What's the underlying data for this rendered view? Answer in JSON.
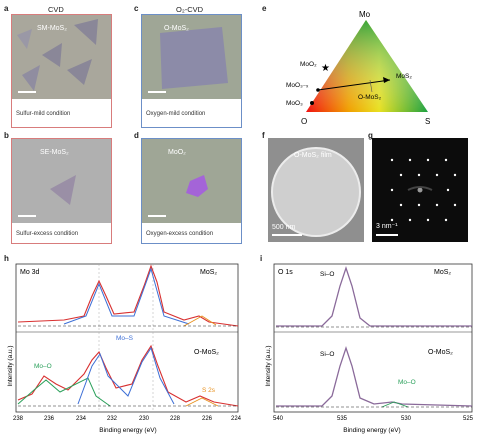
{
  "colors": {
    "red_frame": "#d87c7c",
    "blue_frame": "#6c8fc7",
    "cvd_bg": "#a9a79c",
    "sulfur_bg": "#b0b0b0",
    "oxygen_bg": "#9fa696",
    "oxide_purple": "#a464d8",
    "fit_red": "#d83030",
    "fit_blue": "#3d6fd6",
    "fit_green": "#2aa05a",
    "fit_orange": "#e8901c",
    "fit_purple": "#8a6a9a"
  },
  "labels": {
    "a": "a",
    "b": "b",
    "c": "c",
    "d": "d",
    "e": "e",
    "f": "f",
    "g": "g",
    "h": "h",
    "i": "i"
  },
  "titles": {
    "cvd": "CVD",
    "o2cvd": "O₂-CVD"
  },
  "panel_a": {
    "overlay": "SM-MoS₂",
    "caption": "Sulfur-mild condition"
  },
  "panel_b": {
    "overlay": "SE-MoS₂",
    "caption": "Sulfur-excess condition"
  },
  "panel_c": {
    "overlay": "O-MoS₂",
    "caption": "Oxygen-mild condition"
  },
  "panel_d": {
    "overlay": "MoO₂",
    "caption": "Oxygen-excess condition"
  },
  "panel_e": {
    "top": "Mo",
    "left": "O",
    "right": "S",
    "moo2": "MoO₂",
    "moo3x": "MoO₃₋ₓ",
    "moo3": "MoO₃",
    "mos2": "MoS₂",
    "omos2": "O-MoS₂"
  },
  "panel_f": {
    "overlay": "O-MoS₂ film",
    "scale": "500 nm"
  },
  "panel_g": {
    "scale": "3 nm⁻¹"
  },
  "panel_h": {
    "region": "Mo 3d",
    "top_sample": "MoS₂",
    "bottom_sample": "O-MoS₂",
    "mo_o": "Mo–O",
    "mo_s": "Mo–S",
    "s2s": "S 2s",
    "ylabel": "Intensity (a.u.)",
    "xlabel": "Binding energy (eV)",
    "xticks": [
      "238",
      "236",
      "234",
      "232",
      "230",
      "228",
      "226",
      "224"
    ]
  },
  "panel_i": {
    "region": "O 1s",
    "top_sample": "MoS₂",
    "bottom_sample": "O-MoS₂",
    "si_o_top": "Si–O",
    "si_o_bottom": "Si–O",
    "mo_o": "Mo–O",
    "ylabel": "Intensity (a.u.)",
    "xlabel": "Binding energy (eV)",
    "xticks": [
      "540",
      "535",
      "530",
      "525"
    ]
  }
}
